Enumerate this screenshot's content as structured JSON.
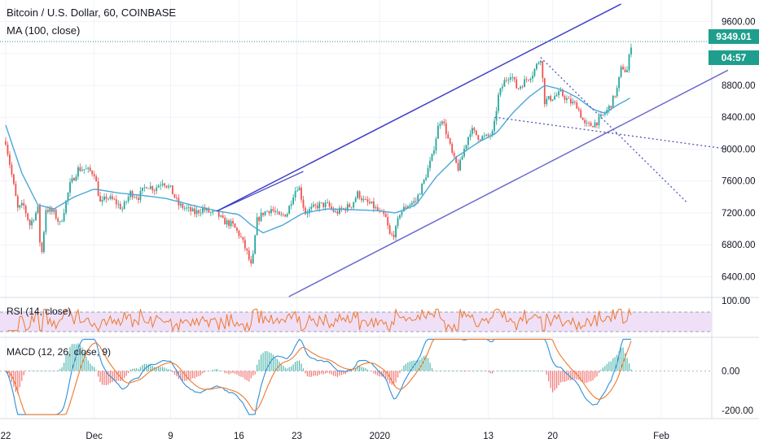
{
  "header": {
    "symbol_title": "Bitcoin / U.S. Dollar, 60, COINBASE",
    "ma_label": "MA (100, close)"
  },
  "price_badge": {
    "price": "9349.01",
    "countdown": "04:57"
  },
  "colors": {
    "price_badge": "#1e9e8c",
    "up_candle": "#26a69a",
    "down_candle": "#ef5350",
    "ma_line": "#4aa8d8",
    "trend_channel": "#3f3fc8",
    "trend_channel_light": "#6c6ccf",
    "dotted_lines": "#5055b8",
    "rsi_line": "#f0782d",
    "rsi_band": "#efe0f7",
    "macd_line": "#2f8fd8",
    "macd_signal": "#f0782d"
  },
  "chart_data": [
    {
      "type": "candlestick",
      "title": "Bitcoin / U.S. Dollar, 60, COINBASE",
      "indicator": "MA (100, close)",
      "y_ticks": [
        "9600.00",
        "8800.00",
        "8400.00",
        "8000.00",
        "7600.00",
        "7200.00",
        "6800.00",
        "6400.00"
      ],
      "y_range": [
        6150,
        9870
      ],
      "last_price": 9349.01,
      "x_ticks": [
        "22",
        "Dec",
        "9",
        "16",
        "23",
        "2020",
        "13",
        "20",
        "Feb"
      ],
      "x_tick_bars": [
        0,
        110,
        205,
        290,
        362,
        465,
        600,
        680,
        815
      ],
      "grid": true,
      "ohlc_anchors": [
        [
          0,
          8100
        ],
        [
          8,
          7650
        ],
        [
          15,
          7250
        ],
        [
          22,
          7300
        ],
        [
          30,
          7050
        ],
        [
          40,
          7250
        ],
        [
          44,
          6600
        ],
        [
          50,
          7250
        ],
        [
          60,
          7200
        ],
        [
          68,
          7050
        ],
        [
          80,
          7550
        ],
        [
          90,
          7750
        ],
        [
          98,
          7750
        ],
        [
          110,
          7700
        ],
        [
          118,
          7300
        ],
        [
          125,
          7400
        ],
        [
          135,
          7350
        ],
        [
          145,
          7250
        ],
        [
          155,
          7450
        ],
        [
          165,
          7400
        ],
        [
          175,
          7550
        ],
        [
          185,
          7500
        ],
        [
          195,
          7600
        ],
        [
          205,
          7500
        ],
        [
          215,
          7300
        ],
        [
          225,
          7250
        ],
        [
          235,
          7200
        ],
        [
          245,
          7250
        ],
        [
          255,
          7200
        ],
        [
          262,
          7200
        ],
        [
          270,
          7100
        ],
        [
          282,
          7050
        ],
        [
          292,
          6900
        ],
        [
          300,
          6700
        ],
        [
          306,
          6500
        ],
        [
          312,
          7100
        ],
        [
          320,
          7200
        ],
        [
          330,
          7250
        ],
        [
          340,
          7150
        ],
        [
          350,
          7200
        ],
        [
          358,
          7450
        ],
        [
          364,
          7550
        ],
        [
          372,
          7200
        ],
        [
          380,
          7250
        ],
        [
          390,
          7300
        ],
        [
          400,
          7300
        ],
        [
          410,
          7200
        ],
        [
          420,
          7250
        ],
        [
          430,
          7300
        ],
        [
          438,
          7450
        ],
        [
          445,
          7350
        ],
        [
          455,
          7300
        ],
        [
          465,
          7200
        ],
        [
          472,
          7150
        ],
        [
          478,
          6900
        ],
        [
          484,
          6950
        ],
        [
          490,
          7200
        ],
        [
          500,
          7300
        ],
        [
          510,
          7350
        ],
        [
          520,
          7600
        ],
        [
          530,
          7900
        ],
        [
          538,
          8300
        ],
        [
          542,
          8400
        ],
        [
          548,
          8200
        ],
        [
          556,
          7900
        ],
        [
          563,
          7750
        ],
        [
          570,
          8000
        ],
        [
          578,
          8250
        ],
        [
          588,
          8150
        ],
        [
          598,
          8150
        ],
        [
          606,
          8200
        ],
        [
          612,
          8650
        ],
        [
          620,
          8850
        ],
        [
          628,
          8950
        ],
        [
          636,
          8750
        ],
        [
          645,
          8850
        ],
        [
          655,
          8950
        ],
        [
          665,
          9150
        ],
        [
          670,
          8600
        ],
        [
          680,
          8650
        ],
        [
          690,
          8700
        ],
        [
          700,
          8600
        ],
        [
          710,
          8550
        ],
        [
          720,
          8300
        ],
        [
          728,
          8300
        ],
        [
          736,
          8350
        ],
        [
          745,
          8450
        ],
        [
          752,
          8550
        ],
        [
          760,
          8750
        ],
        [
          766,
          9050
        ],
        [
          772,
          8950
        ],
        [
          778,
          9349
        ]
      ],
      "ma_anchors": [
        [
          0,
          8300
        ],
        [
          20,
          7700
        ],
        [
          40,
          7300
        ],
        [
          60,
          7250
        ],
        [
          85,
          7400
        ],
        [
          110,
          7500
        ],
        [
          140,
          7450
        ],
        [
          170,
          7420
        ],
        [
          200,
          7380
        ],
        [
          230,
          7300
        ],
        [
          265,
          7220
        ],
        [
          290,
          7180
        ],
        [
          305,
          7050
        ],
        [
          320,
          6950
        ],
        [
          345,
          7050
        ],
        [
          370,
          7200
        ],
        [
          400,
          7250
        ],
        [
          430,
          7240
        ],
        [
          460,
          7230
        ],
        [
          485,
          7200
        ],
        [
          510,
          7300
        ],
        [
          535,
          7650
        ],
        [
          560,
          7900
        ],
        [
          590,
          8100
        ],
        [
          610,
          8200
        ],
        [
          630,
          8450
        ],
        [
          650,
          8650
        ],
        [
          670,
          8800
        ],
        [
          690,
          8750
        ],
        [
          710,
          8650
        ],
        [
          730,
          8500
        ],
        [
          745,
          8450
        ],
        [
          760,
          8550
        ],
        [
          778,
          8650
        ]
      ],
      "trendlines": [
        {
          "name": "channel-upper",
          "from": [
            262,
            7220
          ],
          "to": [
            765,
            9820
          ]
        },
        {
          "name": "channel-lower",
          "from": [
            352,
            6150
          ],
          "to": [
            898,
            8990
          ]
        },
        {
          "name": "upper-touch",
          "from": [
            262,
            7220
          ],
          "to": [
            370,
            7720
          ]
        },
        {
          "name": "dotted-down",
          "from": [
            665,
            9150
          ],
          "to": [
            848,
            7320
          ]
        },
        {
          "name": "dotted-flat",
          "from": [
            608,
            8400
          ],
          "to": [
            898,
            8000
          ]
        }
      ]
    },
    {
      "type": "line",
      "title": "RSI (14, close)",
      "y_ticks": [
        "100.00"
      ],
      "band": [
        30,
        70
      ],
      "y_range": [
        20,
        100
      ],
      "series": [
        {
          "name": "RSI",
          "values_hint": "oscillating between 35 and 75"
        }
      ]
    },
    {
      "type": "line",
      "title": "MACD (12, 26, close, 9)",
      "y_ticks": [
        "0.00",
        "-200.00"
      ],
      "y_range": [
        -240,
        170
      ],
      "series": [
        {
          "name": "MACD"
        },
        {
          "name": "Signal"
        },
        {
          "name": "Histogram"
        }
      ]
    }
  ]
}
